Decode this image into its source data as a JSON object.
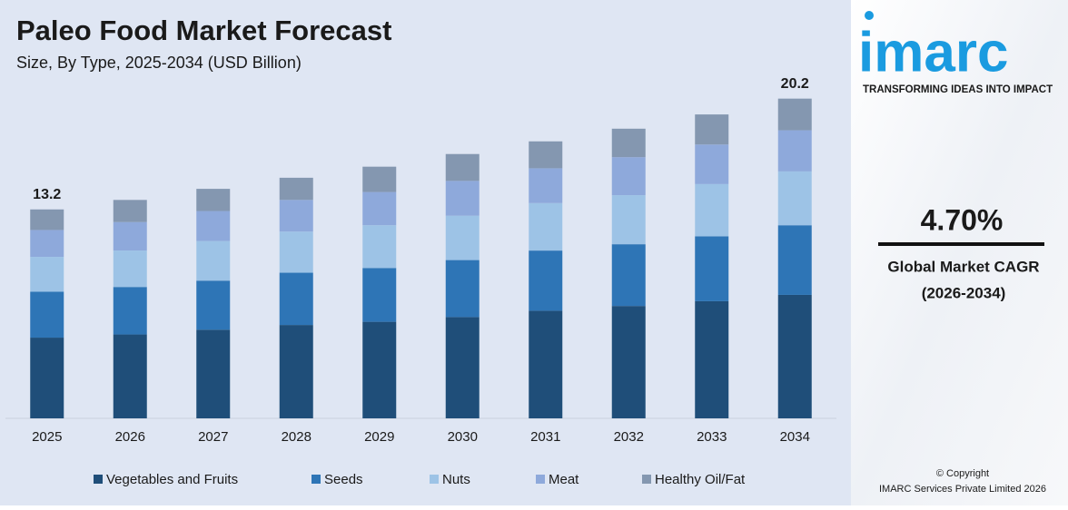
{
  "chart_data": {
    "type": "stacked_bar",
    "title": "Paleo Food Market Forecast",
    "subtitle": "Size, By Type, 2025-2034 (USD Billion)",
    "categories": [
      "2025",
      "2026",
      "2027",
      "2028",
      "2029",
      "2030",
      "2031",
      "2032",
      "2033",
      "2034"
    ],
    "series": [
      {
        "name": "Vegetables and Fruits",
        "color": "#1f4e79",
        "values": [
          5.1,
          5.3,
          5.6,
          5.9,
          6.1,
          6.4,
          6.8,
          7.1,
          7.4,
          7.8
        ]
      },
      {
        "name": "Seeds",
        "color": "#2e75b6",
        "values": [
          2.9,
          3.0,
          3.1,
          3.3,
          3.4,
          3.6,
          3.8,
          3.9,
          4.1,
          4.4
        ]
      },
      {
        "name": "Nuts",
        "color": "#9dc3e6",
        "values": [
          2.2,
          2.3,
          2.5,
          2.6,
          2.7,
          2.8,
          3.0,
          3.1,
          3.3,
          3.4
        ]
      },
      {
        "name": "Meat",
        "color": "#8ea9db",
        "values": [
          1.7,
          1.8,
          1.9,
          2.0,
          2.1,
          2.2,
          2.2,
          2.4,
          2.5,
          2.6
        ]
      },
      {
        "name": "Healthy Oil/Fat",
        "color": "#8497b0",
        "values": [
          1.3,
          1.4,
          1.4,
          1.4,
          1.6,
          1.7,
          1.7,
          1.8,
          1.9,
          2.0
        ]
      }
    ],
    "totals": [
      13.2,
      null,
      null,
      null,
      null,
      null,
      null,
      null,
      null,
      20.2
    ],
    "ylim": [
      0,
      21.5
    ]
  },
  "sidebar": {
    "logo": "imarc",
    "tagline": "TRANSFORMING IDEAS INTO IMPACT",
    "cagr": "4.70%",
    "cagr_label": "Global Market CAGR",
    "cagr_period": "(2026-2034)",
    "copyright": "© Copyright",
    "company": "IMARC Services Private Limited 2026"
  }
}
